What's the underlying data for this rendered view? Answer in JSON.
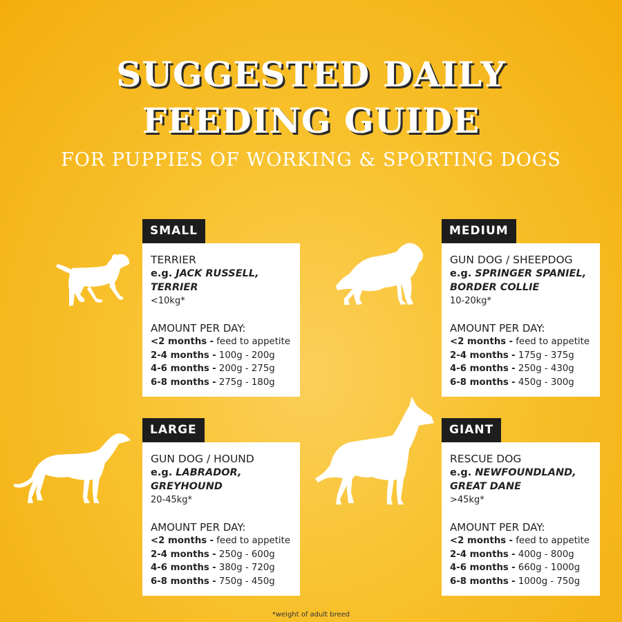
{
  "title_line1": "SUGGESTED DAILY",
  "title_line2": "FEEDING GUIDE",
  "subtitle": "FOR PUPPIES OF WORKING & SPORTING DOGS",
  "footnote": "*weight of adult breed",
  "dash": "-",
  "cards": {
    "small": {
      "tag": "SMALL",
      "type": "TERRIER",
      "eg_prefix": "e.g.",
      "eg_line1": "JACK RUSSELL,",
      "eg_line2": "TERRIER",
      "weight": "<10kg*",
      "amount_heading": "AMOUNT PER DAY:",
      "rows": [
        {
          "age": "<2 months",
          "amount": "feed to appetite"
        },
        {
          "age": "2-4 months",
          "amount": "100g - 200g"
        },
        {
          "age": "4-6 months",
          "amount": "200g - 275g"
        },
        {
          "age": "6-8 months",
          "amount": "275g - 180g"
        }
      ],
      "icon": "terrier-puppy-silhouette"
    },
    "medium": {
      "tag": "MEDIUM",
      "type": "GUN DOG / SHEEPDOG",
      "eg_prefix": "e.g.",
      "eg_line1": "SPRINGER SPANIEL,",
      "eg_line2": "BORDER COLLIE",
      "weight": "10-20kg*",
      "amount_heading": "AMOUNT PER DAY:",
      "rows": [
        {
          "age": "<2 months",
          "amount": "feed to appetite"
        },
        {
          "age": "2-4 months",
          "amount": "175g - 375g"
        },
        {
          "age": "4-6 months",
          "amount": "250g - 430g"
        },
        {
          "age": "6-8 months",
          "amount": "450g - 300g"
        }
      ],
      "icon": "collie-silhouette"
    },
    "large": {
      "tag": "LARGE",
      "type": "GUN DOG / HOUND",
      "eg_prefix": "e.g.",
      "eg_line1": "LABRADOR,",
      "eg_line2": "GREYHOUND",
      "weight": "20-45kg*",
      "amount_heading": "AMOUNT PER DAY:",
      "rows": [
        {
          "age": "<2 months",
          "amount": "feed to appetite"
        },
        {
          "age": "2-4 months",
          "amount": "250g - 600g"
        },
        {
          "age": "4-6 months",
          "amount": "380g - 720g"
        },
        {
          "age": "6-8 months",
          "amount": "750g - 450g"
        }
      ],
      "icon": "greyhound-silhouette"
    },
    "giant": {
      "tag": "GIANT",
      "type": "RESCUE DOG",
      "eg_prefix": "e.g.",
      "eg_line1": "NEWFOUNDLAND,",
      "eg_line2": "GREAT DANE",
      "weight": ">45kg*",
      "amount_heading": "AMOUNT PER DAY:",
      "rows": [
        {
          "age": "<2 months",
          "amount": "feed to appetite"
        },
        {
          "age": "2-4 months",
          "amount": "400g - 800g"
        },
        {
          "age": "4-6 months",
          "amount": "660g - 1000g"
        },
        {
          "age": "6-8 months",
          "amount": "1000g - 750g"
        }
      ],
      "icon": "great-dane-silhouette"
    }
  }
}
